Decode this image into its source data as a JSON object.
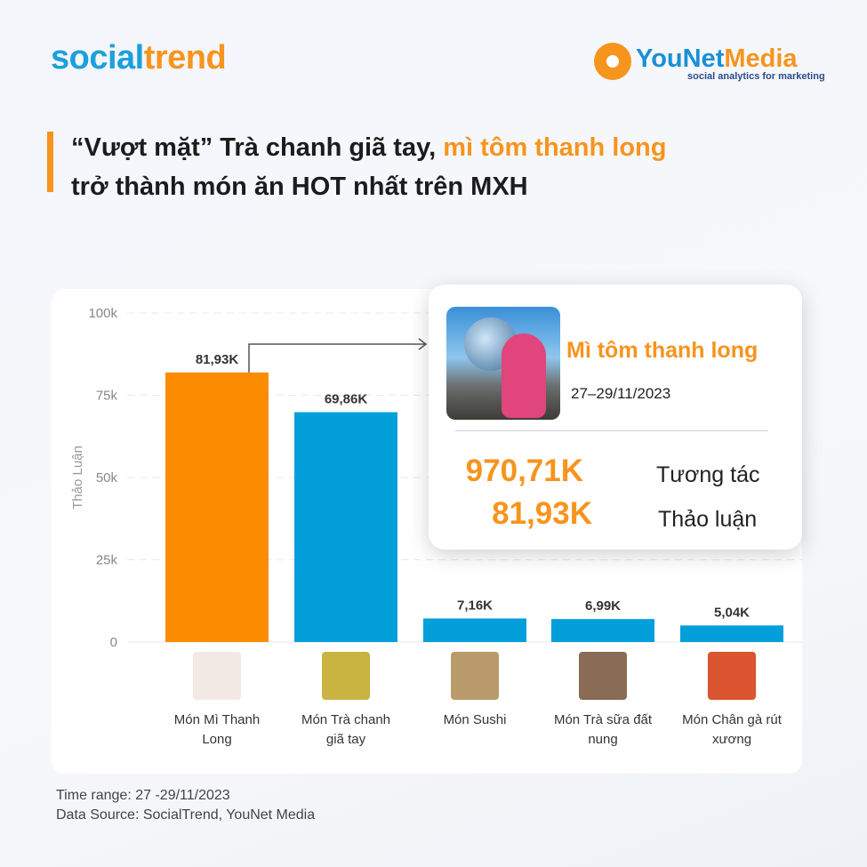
{
  "brand": {
    "left_logo_a": "social",
    "left_logo_b": "trend",
    "right_logo_a": "YouNet",
    "right_logo_b": "Media",
    "right_tagline": "social analytics for marketing"
  },
  "headline": {
    "part1": "“Vượt mặt” Trà chanh giã tay, ",
    "highlight": "mì tôm thanh long",
    "line2": "trở thành món ăn HOT nhất trên MXH"
  },
  "colors": {
    "accent": "#f7941d",
    "bar_highlight": "#fb8c00",
    "bar": "#039fdb"
  },
  "chart_data": {
    "type": "bar",
    "categories": [
      "Món Mì Thanh Long",
      "Món Trà chanh giã tay",
      "Món Sushi",
      "Món Trà sữa đất nung",
      "Món Chân gà rút xương"
    ],
    "values": [
      81.93,
      69.86,
      7.16,
      6.99,
      5.04
    ],
    "value_labels": [
      "81,93K",
      "69,86K",
      "7,16K",
      "6,99K",
      "5,04K"
    ],
    "ylabel": "Thảo Luận",
    "ylim": [
      0,
      100
    ],
    "yticks": [
      0,
      25,
      50,
      75,
      100
    ],
    "ytick_labels": [
      "0",
      "25k",
      "50k",
      "75k",
      "100k"
    ],
    "grid": true,
    "highlight_index": 0
  },
  "popup": {
    "title": "Mì tôm thanh long",
    "date": "27–29/11/2023",
    "interactions_value": "970,71K",
    "interactions_label": "Tương tác",
    "discussions_value": "81,93K",
    "discussions_label": "Thảo luận"
  },
  "footer": {
    "time_range": "Time range: 27 -29/11/2023",
    "source": "Data Source: SocialTrend, YouNet Media"
  }
}
